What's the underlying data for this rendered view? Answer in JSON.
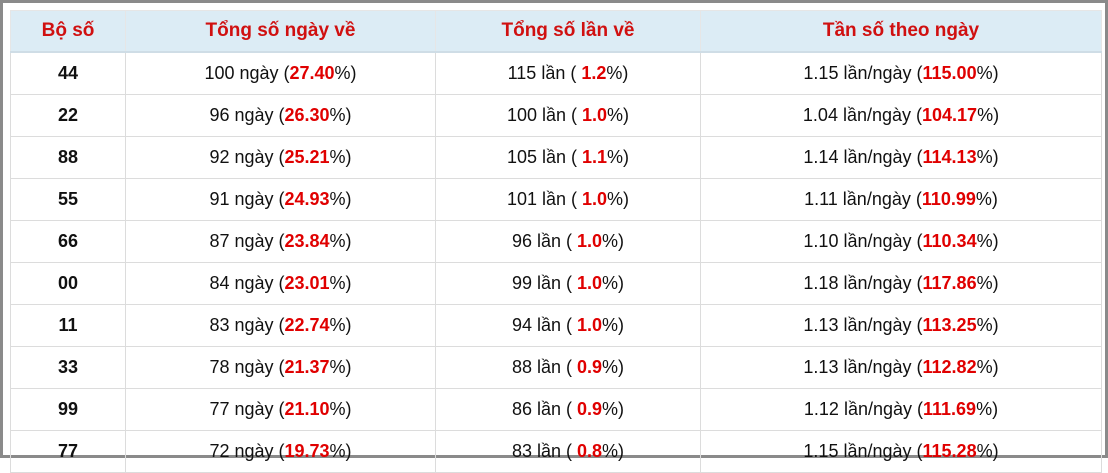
{
  "table": {
    "headers": [
      "Bộ số",
      "Tổng số ngày về",
      "Tổng số lần về",
      "Tần số theo ngày"
    ],
    "rows": [
      [
        "44",
        {
          "text": "100 ngày (",
          "highlight": "27.40",
          "suffix": "%)"
        },
        {
          "text": "115 lần ( ",
          "highlight": "1.2",
          "suffix": "%)"
        },
        {
          "text": "1.15 lần/ngày (",
          "highlight": "115.00",
          "suffix": "%)"
        }
      ],
      [
        "22",
        {
          "text": "96 ngày (",
          "highlight": "26.30",
          "suffix": "%)"
        },
        {
          "text": "100 lần ( ",
          "highlight": "1.0",
          "suffix": "%)"
        },
        {
          "text": "1.04 lần/ngày (",
          "highlight": "104.17",
          "suffix": "%)"
        }
      ],
      [
        "88",
        {
          "text": "92 ngày (",
          "highlight": "25.21",
          "suffix": "%)"
        },
        {
          "text": "105 lần ( ",
          "highlight": "1.1",
          "suffix": "%)"
        },
        {
          "text": "1.14 lần/ngày (",
          "highlight": "114.13",
          "suffix": "%)"
        }
      ],
      [
        "55",
        {
          "text": "91 ngày (",
          "highlight": "24.93",
          "suffix": "%)"
        },
        {
          "text": "101 lần ( ",
          "highlight": "1.0",
          "suffix": "%)"
        },
        {
          "text": "1.11 lần/ngày (",
          "highlight": "110.99",
          "suffix": "%)"
        }
      ],
      [
        "66",
        {
          "text": "87 ngày (",
          "highlight": "23.84",
          "suffix": "%)"
        },
        {
          "text": "96 lần ( ",
          "highlight": "1.0",
          "suffix": "%)"
        },
        {
          "text": "1.10 lần/ngày (",
          "highlight": "110.34",
          "suffix": "%)"
        }
      ],
      [
        "00",
        {
          "text": "84 ngày (",
          "highlight": "23.01",
          "suffix": "%)"
        },
        {
          "text": "99 lần ( ",
          "highlight": "1.0",
          "suffix": "%)"
        },
        {
          "text": "1.18 lần/ngày (",
          "highlight": "117.86",
          "suffix": "%)"
        }
      ],
      [
        "11",
        {
          "text": "83 ngày (",
          "highlight": "22.74",
          "suffix": "%)"
        },
        {
          "text": "94 lần ( ",
          "highlight": "1.0",
          "suffix": "%)"
        },
        {
          "text": "1.13 lần/ngày (",
          "highlight": "113.25",
          "suffix": "%)"
        }
      ],
      [
        "33",
        {
          "text": "78 ngày (",
          "highlight": "21.37",
          "suffix": "%)"
        },
        {
          "text": "88 lần ( ",
          "highlight": "0.9",
          "suffix": "%)"
        },
        {
          "text": "1.13 lần/ngày (",
          "highlight": "112.82",
          "suffix": "%)"
        }
      ],
      [
        "99",
        {
          "text": "77 ngày (",
          "highlight": "21.10",
          "suffix": "%)"
        },
        {
          "text": "86 lần ( ",
          "highlight": "0.9",
          "suffix": "%)"
        },
        {
          "text": "1.12 lần/ngày (",
          "highlight": "111.69",
          "suffix": "%)"
        }
      ],
      [
        "77",
        {
          "text": "72 ngày (",
          "highlight": "19.73",
          "suffix": "%)"
        },
        {
          "text": "83 lần ( ",
          "highlight": "0.8",
          "suffix": "%)"
        },
        {
          "text": "1.15 lần/ngày (",
          "highlight": "115.28",
          "suffix": "%)"
        }
      ]
    ]
  }
}
